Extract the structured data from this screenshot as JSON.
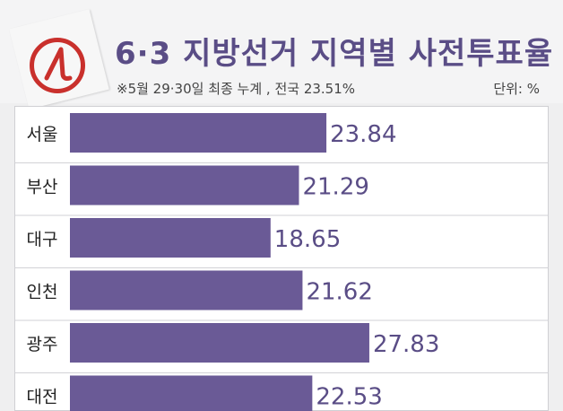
{
  "header": {
    "title": "6·3 지방선거 지역별 사전투표율",
    "note": "※5월 29·30일 최종 누계 , 전국 23.51%",
    "unit": "단위: %"
  },
  "colors": {
    "bar": "#6a5a96",
    "title": "#5a4d86",
    "value_text": "#5a4d86",
    "stamp_red": "#c9302c"
  },
  "chart_data": {
    "type": "bar",
    "orientation": "horizontal",
    "title": "6·3 지방선거 지역별 사전투표율",
    "subtitle": "※5월 29·30일 최종 누계 , 전국 23.51%",
    "unit": "단위: %",
    "categories": [
      "서울",
      "부산",
      "대구",
      "인천",
      "광주",
      "대전"
    ],
    "values": [
      23.84,
      21.29,
      18.65,
      21.62,
      27.83,
      22.53
    ],
    "value_labels": [
      "23.84",
      "21.29",
      "18.65",
      "21.62",
      "27.83",
      "22.53"
    ],
    "xlim": [
      0,
      45
    ],
    "grid": false,
    "legend": "none"
  }
}
